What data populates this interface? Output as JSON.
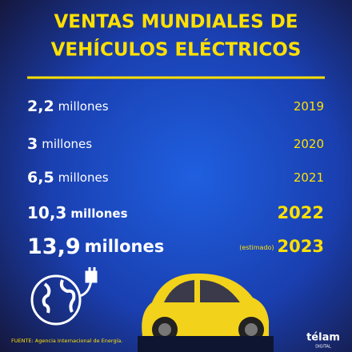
{
  "header": {
    "title_lines": [
      "VENTAS MUNDIALES DE",
      "VEHÍCULOS ELÉCTRICOS"
    ]
  },
  "rows": [
    {
      "amount": "2,2",
      "unit": "millones",
      "year": "2019"
    },
    {
      "amount": "3",
      "unit": "millones",
      "year": "2020"
    },
    {
      "amount": "6,5",
      "unit": "millones",
      "year": "2021"
    },
    {
      "amount": "10,3",
      "unit": "millones",
      "year": "2022"
    },
    {
      "amount": "13,9",
      "unit": "millones",
      "note": "(estimado)",
      "year": "2023"
    }
  ],
  "footer": {
    "source": "FUENTE: Agencia Internacional de Energía.",
    "logo": "télam",
    "logo_sub": "DIGITAL"
  }
}
